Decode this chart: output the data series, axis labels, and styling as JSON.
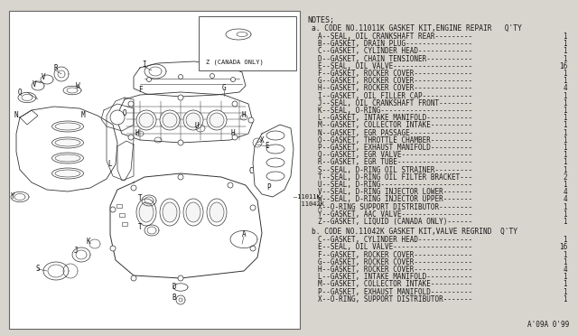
{
  "bg_color": "#d8d5cf",
  "diagram_bg": "#ffffff",
  "text_color": "#1a1a1a",
  "line_color": "#333333",
  "notes_title": "NOTES;",
  "code_a_header": "a. CODE NO.11011K GASKET KIT,ENGINE REPAIR   Q'TY",
  "code_a_items": [
    [
      "A--SEAL, OIL CRANKSHAFT REAR---------",
      "1"
    ],
    [
      "B--GASKET, DRAIN PLUG----------------",
      "1"
    ],
    [
      "C--GASKET, CYLINDER HEAD-------------",
      "1"
    ],
    [
      "D--GASKET, CHAIN TENSIONER-----------",
      "1"
    ],
    [
      "E--SEAL, OIL VALVE-------------------",
      "16"
    ],
    [
      "F--GASKET, ROCKER COVER--------------",
      "1"
    ],
    [
      "G--GASKET, ROCKER COVER--------------",
      "1"
    ],
    [
      "H--GASKET, ROCKER COVER--------------",
      "4"
    ],
    [
      "I--GASKET, OIL FILLER CAP------------",
      "1"
    ],
    [
      "J--SEAL, OIL CRANKSHAFT FRONT--------",
      "1"
    ],
    [
      "K--SEAL, O-RING----------------------",
      "1"
    ],
    [
      "L--GASKET, INTAKE MANIFOLD-----------",
      "1"
    ],
    [
      "M--GASKET, COLLECTOR INTAKE----------",
      "1"
    ],
    [
      "N--GASKET, EGR PASSAGE---------------",
      "1"
    ],
    [
      "O--GASKET, THROTTLE CHAMBER----------",
      "1"
    ],
    [
      "P--GASKET, EXHAUST MANIFOLD----------",
      "1"
    ],
    [
      "Q--GASKET, EGR VALVE-----------------",
      "1"
    ],
    [
      "R--GASKET, EGR TUBE------------------",
      "1"
    ],
    [
      "S--SEAL, D-RING OIL STRAINER---------",
      "1"
    ],
    [
      "T--SEAL, D-RING OIL FILTER BRACKET---",
      "2"
    ],
    [
      "U--SEAL, D-RING----------------------",
      "1"
    ],
    [
      "V--SEAL, D-RING INJECTOR LOWER-------",
      "4"
    ],
    [
      "W--SEAL, D-RING INJECTOR UPPER-------",
      "4"
    ],
    [
      "X--O-RING SUPPORT DISTRIBUTOR--------",
      "1"
    ],
    [
      "Y--GASKET, AAC VALVE-----------------",
      "1"
    ],
    [
      "Z--GASKET, LIQUID (CANADA ONLY)------",
      "1"
    ]
  ],
  "code_b_header": "b. CODE NO.11042K GASKET KIT,VALVE REGRIND  Q'TY",
  "code_b_items": [
    [
      "C--GASKET, CYLINDER HEAD-------------",
      "1"
    ],
    [
      "E--SEAL, OIL VALVE-------------------",
      "16"
    ],
    [
      "F--GASKET, ROCKER COVER--------------",
      "1"
    ],
    [
      "G--GASKET, ROCKER COVER--------------",
      "1"
    ],
    [
      "H--GASKET, ROCKER COVER--------------",
      "4"
    ],
    [
      "L--GASKET, INTAKE MANIFOLD-----------",
      "1"
    ],
    [
      "M--GASKET, COLLECTOR INTAKE----------",
      "1"
    ],
    [
      "P--GASKET, EXHAUST MANIFOLD----------",
      "1"
    ],
    [
      "X--O-RING, SUPPORT DISTRIBUTOR-------",
      "1"
    ]
  ],
  "footer": "A'09A 0'99",
  "canada_label": "Z (CANADA ONLY)",
  "ref_a": "11011K",
  "ref_b": "11042K",
  "font_size_main": 5.5,
  "font_size_header": 5.7,
  "font_size_notes": 6.0,
  "font_size_label": 5.5
}
